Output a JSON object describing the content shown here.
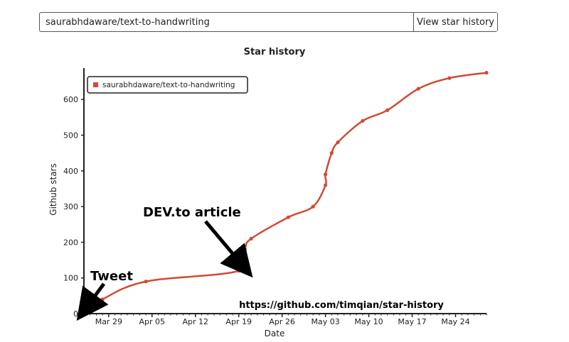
{
  "search": {
    "value": "saurabhdaware/text-to-handwriting",
    "button_label": "View star history"
  },
  "chart_data": {
    "type": "line",
    "title": "Star history",
    "xlabel": "Date",
    "ylabel": "Github stars",
    "ylim": [
      0,
      680
    ],
    "yticks": [
      0,
      100,
      200,
      300,
      400,
      500,
      600
    ],
    "xticks": [
      "Mar 29",
      "Apr 05",
      "Apr 12",
      "Apr 19",
      "Apr 26",
      "May 03",
      "May 10",
      "May 17",
      "May 24"
    ],
    "grid": false,
    "legend_position": "top-left",
    "series": [
      {
        "name": "saurabhdaware/text-to-handwriting",
        "color": "#d24a33",
        "points": [
          {
            "x": "2020-03-25",
            "y": 0
          },
          {
            "x": "2020-03-28",
            "y": 40
          },
          {
            "x": "2020-04-04",
            "y": 90
          },
          {
            "x": "2020-04-19",
            "y": 120
          },
          {
            "x": "2020-04-20",
            "y": 180
          },
          {
            "x": "2020-04-21",
            "y": 210
          },
          {
            "x": "2020-04-27",
            "y": 270
          },
          {
            "x": "2020-05-01",
            "y": 300
          },
          {
            "x": "2020-05-03",
            "y": 360
          },
          {
            "x": "2020-05-03",
            "y": 390
          },
          {
            "x": "2020-05-04",
            "y": 450
          },
          {
            "x": "2020-05-05",
            "y": 480
          },
          {
            "x": "2020-05-09",
            "y": 540
          },
          {
            "x": "2020-05-13",
            "y": 570
          },
          {
            "x": "2020-05-18",
            "y": 630
          },
          {
            "x": "2020-05-23",
            "y": 660
          },
          {
            "x": "2020-05-29",
            "y": 675
          }
        ]
      }
    ],
    "annotations": [
      {
        "text": "DEV.to article",
        "x": "2020-04-19",
        "y": 120
      },
      {
        "text": "Tweet",
        "x": "2020-03-25",
        "y": 0
      }
    ],
    "watermark": "https://github.com/timqian/star-history"
  }
}
